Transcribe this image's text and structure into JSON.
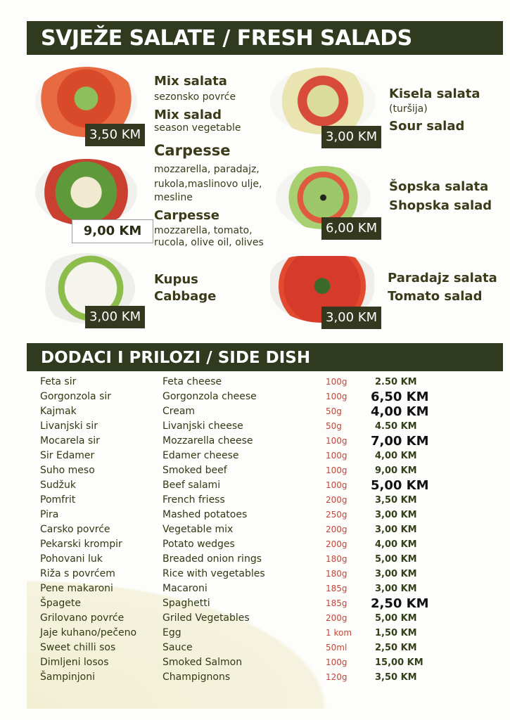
{
  "salads_title": "SVJEŽE SALATE / FRESH SALADS",
  "salads": {
    "mix": {
      "name_bs": "Mix salata",
      "desc_bs": "sezonsko povrće",
      "name_en": "Mix salad",
      "desc_en": "season vegetable",
      "price": "3,50 KM"
    },
    "carpesse": {
      "name_bs": "Carpesse",
      "desc_bs_1": "mozzarella, paradajz,",
      "desc_bs_2": "rukola,maslinovo ulje,",
      "desc_bs_3": "mesline",
      "name_en": "Carpesse",
      "desc_en_1": "mozzarella, tomato,",
      "desc_en_2": "rucola, olive oil, olives",
      "price": "9,00 KM"
    },
    "kupus": {
      "name_bs": "Kupus",
      "name_en": "Cabbage",
      "price": "3,00 KM"
    },
    "kisela": {
      "name_bs": "Kisela salata",
      "desc_bs": "(turšija)",
      "name_en": "Sour salad",
      "price": "3,00 KM"
    },
    "sopska": {
      "name_bs": "Šopska salata",
      "name_en": "Shopska salad",
      "price": "6,00 KM"
    },
    "paradajz": {
      "name_bs": "Paradajz salata",
      "name_en": "Tomato salad",
      "price": "3,00 KM"
    }
  },
  "side_title": "DODACI I PRILOZI / SIDE DISH",
  "side_dishes": [
    [
      "Feta sir",
      "Feta cheese",
      "100g",
      "2.50 KM"
    ],
    [
      "Gorgonzola sir",
      "Gorgonzola cheese",
      "100g",
      "6,50 KM"
    ],
    [
      "Kajmak",
      "Cream",
      "50g",
      "4,00 KM"
    ],
    [
      "Livanjski sir",
      "Livanjski cheese",
      "50g",
      "4.50 KM"
    ],
    [
      "Mocarela sir",
      "Mozzarella cheese",
      "100g",
      "7,00 KM"
    ],
    [
      "Sir Edamer",
      "Edamer cheese",
      "100g",
      "4,00 KM"
    ],
    [
      "Suho meso",
      "Smoked beef",
      "100g",
      "9,00 KM"
    ],
    [
      "Sudžuk",
      "Beef salami",
      "100g",
      "5,00 KM"
    ],
    [
      "Pomfrit",
      "French friess",
      "200g",
      "3,50 KM"
    ],
    [
      "Pira",
      "Mashed potatoes",
      "250g",
      "3,00 KM"
    ],
    [
      "Carsko povrće",
      "Vegetable mix",
      "200g",
      "3,00 KM"
    ],
    [
      "Pekarski krompir",
      "Potato wedges",
      "200g",
      "4,00 KM"
    ],
    [
      "Pohovani luk",
      "Breaded onion rings",
      "180g",
      "5,00 KM"
    ],
    [
      "Riža s povrćem",
      "Rice with vegetables",
      "180g",
      "3,00 KM"
    ],
    [
      "Pene makaroni",
      "Macaroni",
      "185g",
      "3,00 KM"
    ],
    [
      "Špagete",
      "Spaghetti",
      "185g",
      "2,50 KM"
    ],
    [
      "Grilovano povrće",
      "Griled Vegetables",
      "200g",
      "5,00 KM"
    ],
    [
      "Jaje kuhano/pečeno",
      "Egg",
      "1 kom",
      "1,50 KM"
    ],
    [
      "Sweet chilli sos",
      "Sauce",
      "50ml",
      "2,50 KM"
    ],
    [
      "Dimljeni losos",
      "Smoked Salmon",
      "100g",
      "15,00 KM"
    ],
    [
      "Šampinjoni",
      "Champignons",
      "120g",
      "3,50 KM"
    ]
  ]
}
